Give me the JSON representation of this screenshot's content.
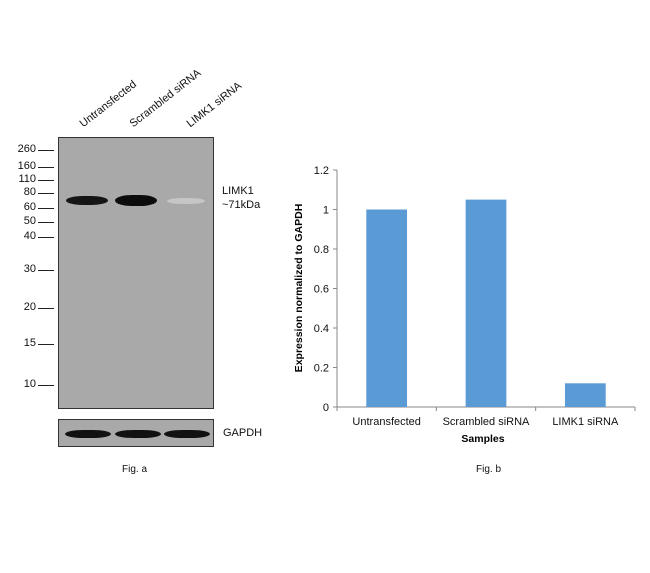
{
  "fig_a": {
    "lane_labels": [
      "Untransfected",
      "Scrambled siRNA",
      "LIMK1 siRNA"
    ],
    "mw_markers": [
      "260",
      "160",
      "110",
      "80",
      "60",
      "50",
      "40",
      "30",
      "20",
      "15",
      "10"
    ],
    "target_label": "LIMK1",
    "target_size": "~71kDa",
    "loading_label": "GAPDH",
    "caption": "Fig. a"
  },
  "fig_b": {
    "caption": "Fig. b"
  },
  "chart_data": {
    "type": "bar",
    "categories": [
      "Untransfected",
      "Scrambled siRNA",
      "LIMK1 siRNA"
    ],
    "values": [
      1.0,
      1.05,
      0.12
    ],
    "xlabel": "Samples",
    "ylabel": "Expression  normalized to GAPDH",
    "ylim": [
      0,
      1.2
    ],
    "yticks": [
      "0",
      "0.2",
      "0.4",
      "0.6",
      "0.8",
      "1",
      "1.2"
    ],
    "bar_color": "#5b9bd5",
    "grid": false,
    "legend": "none"
  }
}
